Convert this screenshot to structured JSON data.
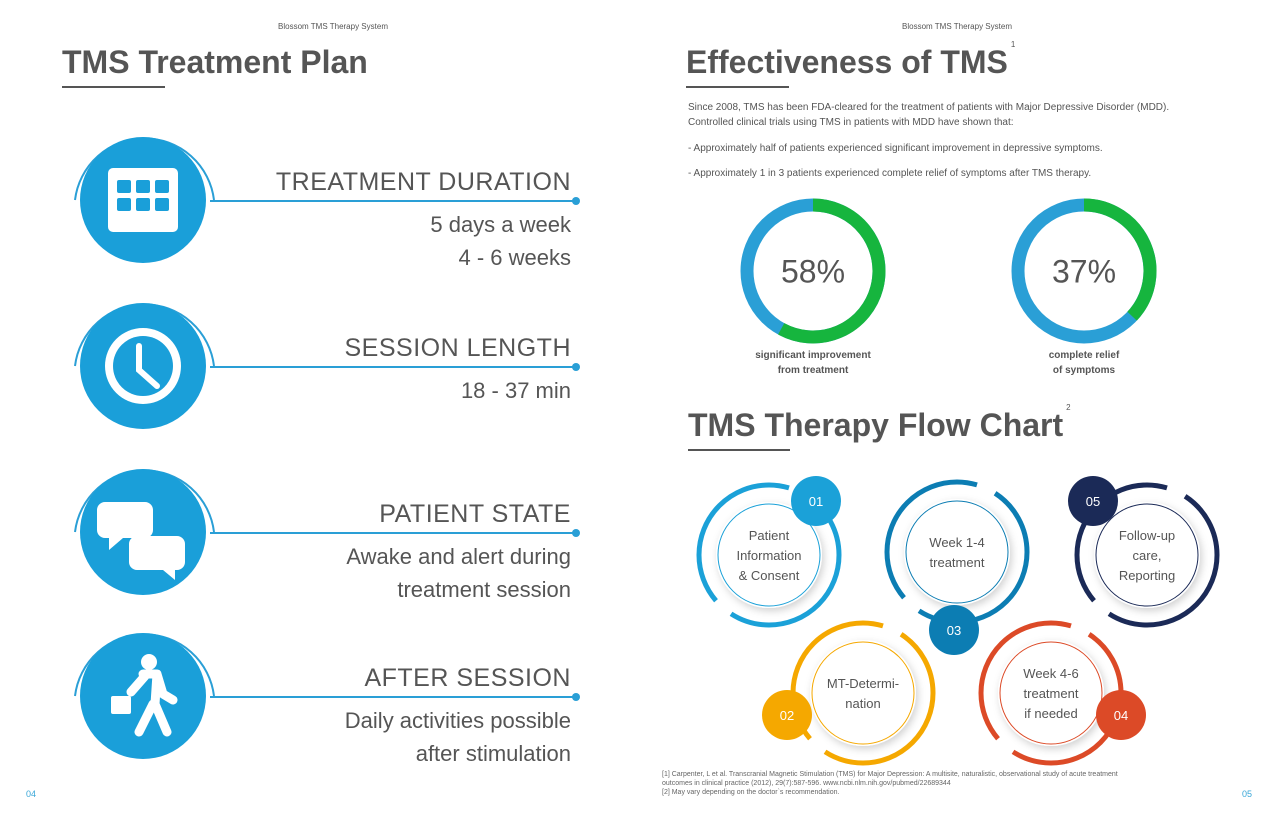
{
  "left_page": {
    "header": "Blossom TMS Therapy System",
    "title": "TMS Treatment Plan",
    "page_number": "04",
    "items": [
      {
        "icon": "calendar-icon",
        "title": "TREATMENT DURATION",
        "lines": [
          "5 days a week",
          "4 - 6 weeks"
        ]
      },
      {
        "icon": "clock-icon",
        "title": "SESSION LENGTH",
        "lines": [
          "18 - 37 min"
        ]
      },
      {
        "icon": "chat-bubbles-icon",
        "title": "PATIENT STATE",
        "lines": [
          "Awake and alert during",
          "treatment session"
        ]
      },
      {
        "icon": "walking-person-icon",
        "title": "AFTER SESSION",
        "lines": [
          "Daily activities possible",
          "after stimulation"
        ]
      }
    ]
  },
  "right_page": {
    "header": "Blossom TMS Therapy System",
    "title": "Effectiveness of TMS",
    "title_sup": "1",
    "intro": [
      "Since 2008, TMS has been FDA-cleared for the treatment of patients with Major Depressive Disorder (MDD).",
      "Controlled clinical trials using TMS in patients with MDD have shown that:"
    ],
    "bullets": [
      "- Approximately half of patients experienced significant improvement in depressive symptoms.",
      "- Approximately 1 in 3 patients experienced complete relief of symptoms after TMS therapy."
    ],
    "stats": [
      {
        "value": 58,
        "label": "58%",
        "caption": [
          "significant improvement",
          "from treatment"
        ]
      },
      {
        "value": 37,
        "label": "37%",
        "caption": [
          "complete relief",
          "of symptoms"
        ]
      }
    ],
    "colors": {
      "primary": "#1a9fd9",
      "progress": "#16b53e",
      "track": "#2a9fd6"
    },
    "flow_title": "TMS Therapy Flow Chart",
    "flow_sup": "2",
    "flow_steps": [
      {
        "num": "01",
        "lines": [
          "Patient",
          "Information",
          "& Consent"
        ],
        "color": "#1ba1d8"
      },
      {
        "num": "02",
        "lines": [
          "MT-Determi-",
          "nation"
        ],
        "color": "#f5a800"
      },
      {
        "num": "03",
        "lines": [
          "Week 1-4",
          "treatment"
        ],
        "color": "#0c7db3"
      },
      {
        "num": "04",
        "lines": [
          "Week 4-6",
          "treatment",
          "if needed"
        ],
        "color": "#dc4a27"
      },
      {
        "num": "05",
        "lines": [
          "Follow-up",
          "care,",
          "Reporting"
        ],
        "color": "#1b2a57"
      }
    ],
    "footnotes": [
      "[1] Carpenter, L et al. Transcranial Magnetic Stimulation (TMS) for Major Depression: A multisite, naturalistic, observational study of acute treatment",
      "outcomes in clinical practice (2012), 29(7):587-596. www.ncbi.nlm.nih.gov/pubmed/22689344",
      "[2] May vary depending on the doctor`s recommendation."
    ],
    "page_number": "05"
  }
}
